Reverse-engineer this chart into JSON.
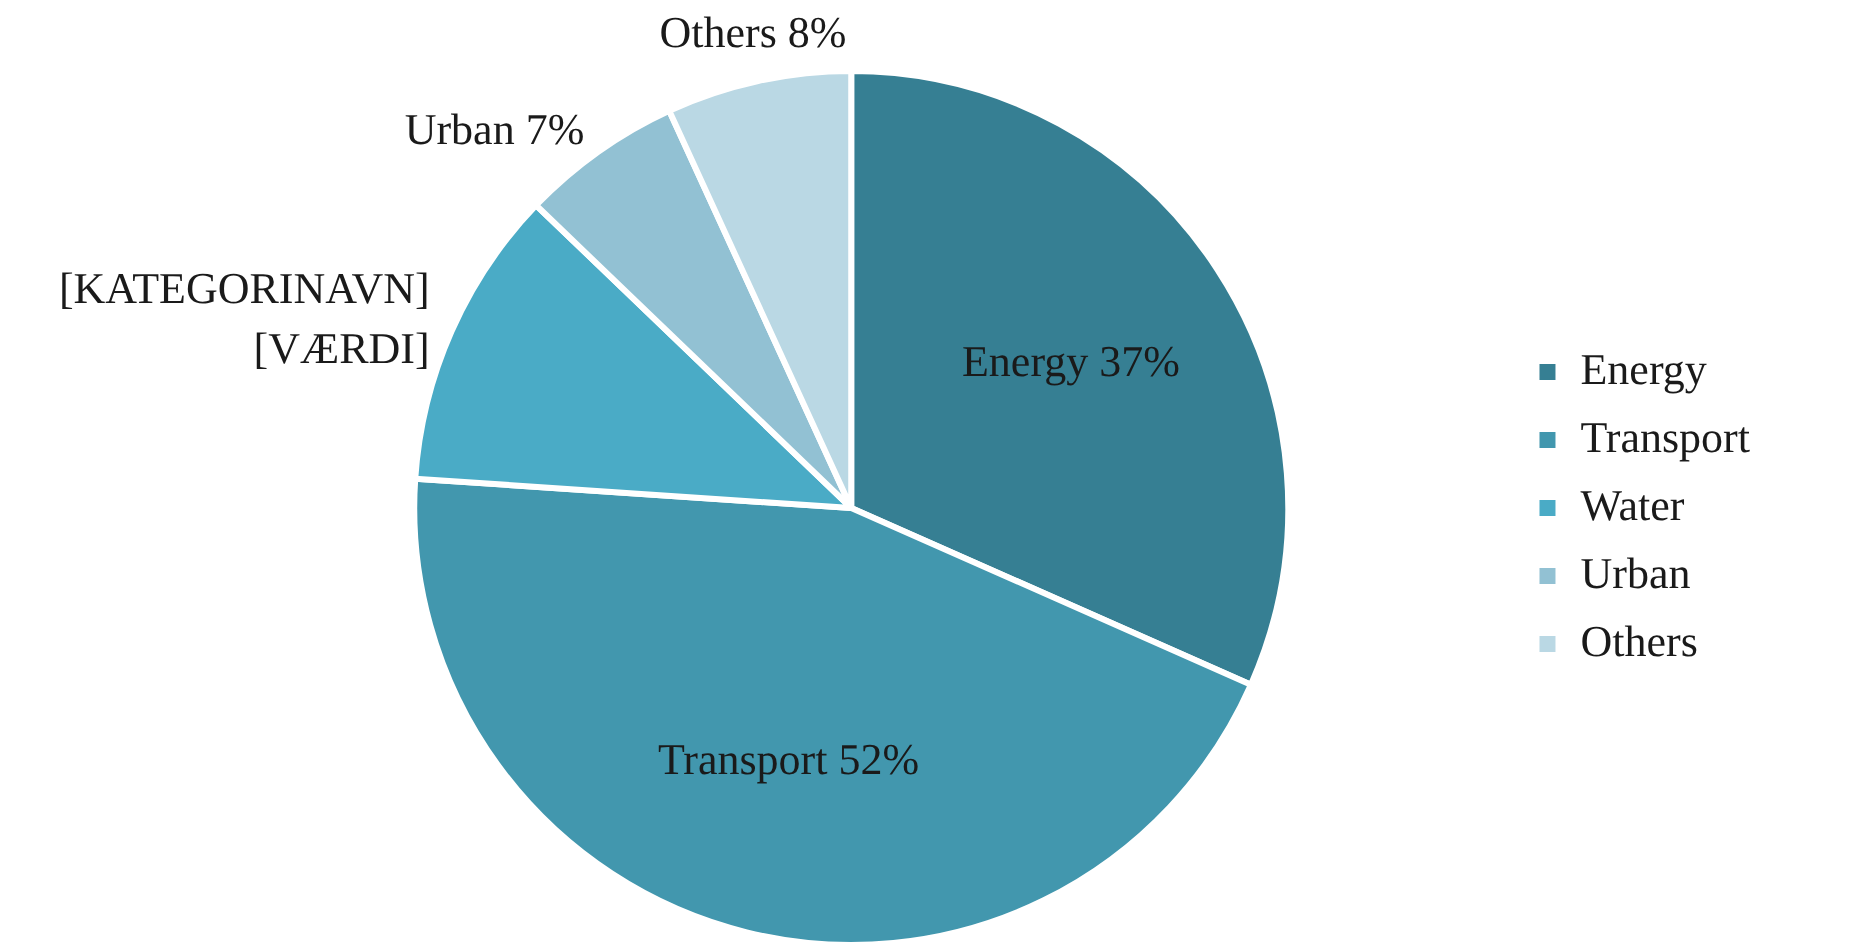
{
  "chart_data": {
    "type": "pie",
    "categories": [
      "Energy",
      "Transport",
      "Water",
      "Urban",
      "Others"
    ],
    "values": [
      37,
      52,
      13,
      7,
      8
    ],
    "colors": [
      "#367f93",
      "#4297ae",
      "#4aabc6",
      "#92c1d3",
      "#bad8e4"
    ],
    "value_labels": [
      "Energy 37%",
      "Transport 52%",
      "[KATEGORINAVN] [VÆRDI]",
      "Urban 7%",
      "Others 8%"
    ],
    "legend": "right"
  }
}
